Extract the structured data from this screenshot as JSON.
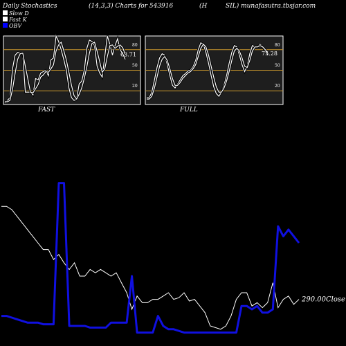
{
  "header": {
    "left": "Daily Stochastics",
    "middle": "(14,3,3) Charts for 543916",
    "h": "(H",
    "right": "SIL) munafasutra.tbsjar.com"
  },
  "legend": [
    {
      "label": "Slow  D",
      "color": "#ffffff"
    },
    {
      "label": "Fast K",
      "color": "#ffffff"
    },
    {
      "label": "OBV",
      "color": "#0000ff"
    }
  ],
  "colors": {
    "panel_bg": "#1e1e1e",
    "panel_border": "#ffffff",
    "band_line": "#c8962d",
    "price_line": "#ffffff",
    "obv_line": "#1010e0"
  },
  "chart_data": [
    {
      "type": "line",
      "label": "FAST",
      "ylim": [
        0,
        100
      ],
      "yticks": [
        20,
        50,
        80
      ],
      "bands": [
        20,
        50,
        80
      ],
      "last_value": "63.71",
      "series": [
        {
          "name": "Fast K",
          "values": [
            2,
            6,
            10,
            52,
            72,
            76,
            75,
            74,
            18,
            18,
            18,
            14,
            38,
            36,
            46,
            48,
            50,
            42,
            65,
            68,
            100,
            92,
            80,
            66,
            50,
            24,
            10,
            6,
            8,
            30,
            34,
            50,
            82,
            94,
            92,
            86,
            56,
            46,
            40,
            70,
            100,
            88,
            72,
            86,
            96,
            80,
            74,
            66
          ]
        },
        {
          "name": "Slow  D",
          "values": [
            4,
            4,
            6,
            22,
            45,
            66,
            74,
            75,
            56,
            37,
            18,
            17,
            23,
            29,
            40,
            43,
            48,
            47,
            52,
            58,
            78,
            87,
            91,
            79,
            65,
            47,
            28,
            13,
            8,
            15,
            24,
            38,
            55,
            75,
            89,
            91,
            78,
            63,
            47,
            52,
            70,
            86,
            87,
            82,
            85,
            87,
            83,
            73
          ]
        }
      ]
    },
    {
      "type": "line",
      "label": "FULL",
      "ylim": [
        0,
        100
      ],
      "yticks": [
        20,
        50,
        80
      ],
      "bands": [
        20,
        50,
        80
      ],
      "last_value": "75.28",
      "series": [
        {
          "name": "Fast K",
          "values": [
            10,
            10,
            18,
            36,
            54,
            68,
            74,
            72,
            58,
            42,
            28,
            24,
            30,
            36,
            42,
            45,
            49,
            50,
            55,
            64,
            80,
            90,
            88,
            76,
            60,
            42,
            26,
            16,
            12,
            18,
            28,
            42,
            60,
            76,
            86,
            84,
            72,
            58,
            48,
            56,
            74,
            86,
            84,
            84,
            88,
            84,
            78,
            72
          ]
        },
        {
          "name": "Slow  D",
          "values": [
            8,
            8,
            12,
            24,
            40,
            56,
            66,
            70,
            64,
            52,
            38,
            28,
            28,
            32,
            38,
            42,
            46,
            48,
            52,
            58,
            70,
            82,
            88,
            84,
            72,
            56,
            40,
            26,
            18,
            18,
            24,
            34,
            48,
            64,
            78,
            82,
            78,
            68,
            56,
            54,
            64,
            78,
            84,
            84,
            86,
            84,
            80,
            75
          ]
        }
      ]
    },
    {
      "type": "line",
      "label": "Close",
      "last_value": "290.00",
      "ylim": [
        0,
        100
      ],
      "series": [
        {
          "name": "Close",
          "values": [
            82,
            82,
            80,
            76,
            72,
            68,
            64,
            60,
            56,
            56,
            50,
            53,
            48,
            44,
            48,
            40,
            40,
            44,
            42,
            44,
            42,
            40,
            42,
            36,
            30,
            20,
            28,
            24,
            24,
            26,
            26,
            28,
            30,
            26,
            27,
            30,
            25,
            26,
            22,
            18,
            10,
            9,
            8,
            10,
            16,
            26,
            30,
            30,
            22,
            24,
            21,
            24,
            36,
            21,
            26,
            28,
            23,
            26
          ]
        },
        {
          "name": "OBV",
          "color": "#1010e0",
          "values": [
            16,
            16,
            15,
            14,
            13,
            12,
            12,
            12,
            11,
            11,
            11,
            96,
            96,
            10,
            10,
            10,
            10,
            9,
            9,
            9,
            9,
            12,
            12,
            12,
            12,
            40,
            6,
            6,
            6,
            6,
            16,
            10,
            8,
            8,
            7,
            6,
            6,
            6,
            6,
            6,
            6,
            6,
            6,
            6,
            6,
            6,
            22,
            22,
            20,
            22,
            18,
            18,
            20,
            70,
            64,
            68,
            64,
            60
          ]
        }
      ]
    }
  ]
}
